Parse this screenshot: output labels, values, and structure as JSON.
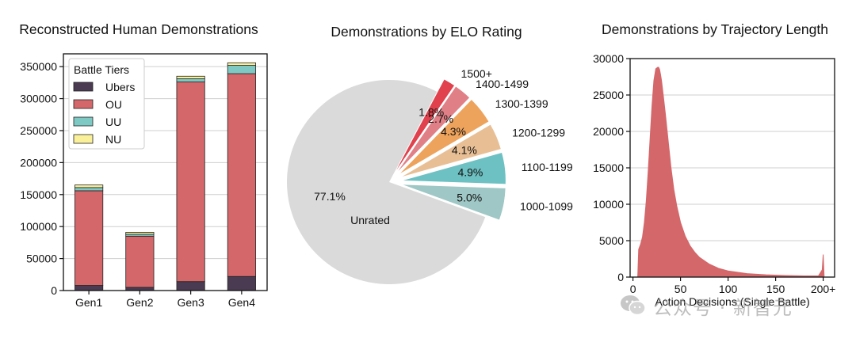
{
  "chart_data": [
    {
      "type": "bar",
      "stacked": true,
      "title": "Reconstructed Human Demonstrations",
      "categories": [
        "Gen1",
        "Gen2",
        "Gen3",
        "Gen4"
      ],
      "series": [
        {
          "name": "Ubers",
          "color": "#4a3b52",
          "values": [
            8000,
            5000,
            14000,
            22000
          ]
        },
        {
          "name": "OU",
          "color": "#d4676a",
          "values": [
            148000,
            80000,
            312000,
            317000
          ]
        },
        {
          "name": "UU",
          "color": "#7ec9c4",
          "values": [
            5000,
            3000,
            5000,
            13000
          ]
        },
        {
          "name": "NU",
          "color": "#fbf09a",
          "values": [
            4000,
            3000,
            4000,
            4000
          ]
        }
      ],
      "ylim": [
        0,
        370000
      ],
      "yticks": [
        "0",
        "50000",
        "100000",
        "150000",
        "200000",
        "250000",
        "300000",
        "350000"
      ],
      "ytick_values": [
        0,
        50000,
        100000,
        150000,
        200000,
        250000,
        300000,
        350000
      ],
      "legend_title": "Battle Tiers",
      "legend_position": "top-left",
      "grid": "horizontal"
    },
    {
      "type": "pie",
      "title": "Demonstrations by ELO Rating",
      "slices": [
        {
          "label": "Unrated",
          "pct_label": "77.1%",
          "value": 77.1,
          "color": "#d9dad9",
          "explode": false
        },
        {
          "label": "1000-1099",
          "pct_label": "5.0%",
          "value": 5.0,
          "color": "#9ec7c5",
          "explode": true
        },
        {
          "label": "1100-1199",
          "pct_label": "4.9%",
          "value": 4.9,
          "color": "#6ec1c3",
          "explode": true
        },
        {
          "label": "1200-1299",
          "pct_label": "4.1%",
          "value": 4.1,
          "color": "#e8bf95",
          "explode": true
        },
        {
          "label": "1300-1399",
          "pct_label": "4.3%",
          "value": 4.3,
          "color": "#eda35c",
          "explode": true
        },
        {
          "label": "1400-1499",
          "pct_label": "2.7%",
          "value": 2.7,
          "color": "#e08086",
          "explode": true
        },
        {
          "label": "1500+",
          "pct_label": "1.8%",
          "value": 1.8,
          "color": "#e0414c",
          "explode": true
        }
      ]
    },
    {
      "type": "area",
      "title": "Demonstrations by Trajectory Length",
      "xlabel": "Action Decisions (Single Battle)",
      "ylabel": "",
      "color": "#d4676a",
      "x": [
        5,
        6,
        8,
        10,
        12,
        14,
        16,
        18,
        20,
        22,
        24,
        26,
        27,
        28,
        29,
        30,
        32,
        34,
        36,
        38,
        40,
        43,
        46,
        50,
        55,
        60,
        65,
        70,
        80,
        90,
        100,
        120,
        140,
        160,
        180,
        195,
        199,
        200,
        201
      ],
      "y": [
        0,
        3800,
        4500,
        5500,
        7500,
        10500,
        14500,
        19000,
        23500,
        27000,
        28600,
        28800,
        28800,
        28500,
        27800,
        27000,
        24800,
        22500,
        20000,
        17500,
        15000,
        12000,
        9800,
        7500,
        5600,
        4300,
        3400,
        2700,
        1800,
        1200,
        850,
        480,
        320,
        220,
        160,
        160,
        1000,
        3100,
        0
      ],
      "xlim": [
        -3,
        212
      ],
      "ylim": [
        0,
        30000
      ],
      "xticks": [
        "0",
        "50",
        "100",
        "150",
        "200+"
      ],
      "xtick_values": [
        0,
        50,
        100,
        150,
        200
      ],
      "yticks": [
        "0",
        "5000",
        "10000",
        "15000",
        "20000",
        "25000",
        "30000"
      ],
      "ytick_values": [
        0,
        5000,
        10000,
        15000,
        20000,
        25000,
        30000
      ],
      "grid": "horizontal"
    }
  ],
  "watermark": {
    "text": "公众号 · 新智元",
    "icon": "wechat-icon"
  }
}
